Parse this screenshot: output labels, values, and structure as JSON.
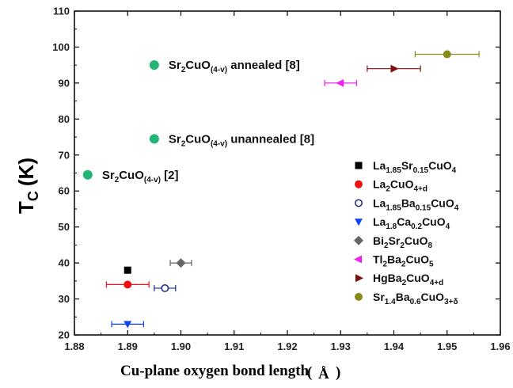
{
  "chart_data": {
    "type": "scatter",
    "xlabel": "Cu-plane oxygen bond length",
    "xlabel_unit": "Å",
    "ylabel_main": "T",
    "ylabel_sub": "C",
    "ylabel_unit": "(K)",
    "xlim": [
      1.88,
      1.96
    ],
    "ylim": [
      20,
      110
    ],
    "xticks": [
      "1.88",
      "1.89",
      "1.90",
      "1.91",
      "1.92",
      "1.93",
      "1.94",
      "1.95",
      "1.96"
    ],
    "yticks": [
      "20",
      "30",
      "40",
      "50",
      "60",
      "70",
      "80",
      "90",
      "100",
      "110"
    ],
    "legend_position": "right",
    "series": [
      {
        "name": "La1.85Sr0.15CuO4",
        "name_parts": [
          [
            "La",
            ""
          ],
          [
            "1.85",
            "sub"
          ],
          [
            "Sr",
            ""
          ],
          [
            "0.15",
            "sub"
          ],
          [
            "CuO",
            ""
          ],
          [
            "4",
            "sub"
          ]
        ],
        "color": "#000000",
        "marker": "square",
        "x": 1.89,
        "y": 38,
        "xerr": 0
      },
      {
        "name": "La2CuO4+d",
        "name_parts": [
          [
            "La",
            ""
          ],
          [
            "2",
            "sub"
          ],
          [
            "CuO",
            ""
          ],
          [
            "4+d",
            "sub"
          ]
        ],
        "color": "#ee1111",
        "marker": "circle",
        "x": 1.89,
        "y": 34,
        "xerr": 0.004
      },
      {
        "name": "La1.85Ba0.15CuO4",
        "name_parts": [
          [
            "La",
            ""
          ],
          [
            "1.85",
            "sub"
          ],
          [
            "Ba",
            ""
          ],
          [
            "0.15",
            "sub"
          ],
          [
            "CuO",
            ""
          ],
          [
            "4",
            "sub"
          ]
        ],
        "color": "#1a2a8a",
        "marker": "open-circle",
        "x": 1.897,
        "y": 33,
        "xerr": 0.002
      },
      {
        "name": "La1.8Ca0.2CuO4",
        "name_parts": [
          [
            "La",
            ""
          ],
          [
            "1.8",
            "sub"
          ],
          [
            "Ca",
            ""
          ],
          [
            "0.2",
            "sub"
          ],
          [
            "CuO",
            ""
          ],
          [
            "4",
            "sub"
          ]
        ],
        "color": "#1144ee",
        "marker": "triangle-down",
        "x": 1.89,
        "y": 23,
        "xerr": 0.003
      },
      {
        "name": "Bi2Sr2CuO8",
        "name_parts": [
          [
            "Bi",
            ""
          ],
          [
            "2",
            "sub"
          ],
          [
            "Sr",
            ""
          ],
          [
            "2",
            "sub"
          ],
          [
            "CuO",
            ""
          ],
          [
            "8",
            "sub"
          ]
        ],
        "color": "#666666",
        "marker": "diamond",
        "x": 1.9,
        "y": 40,
        "xerr": 0.002
      },
      {
        "name": "Tl2Ba2CuO5",
        "name_parts": [
          [
            "Tl",
            ""
          ],
          [
            "2",
            "sub"
          ],
          [
            "Ba",
            ""
          ],
          [
            "2",
            "sub"
          ],
          [
            "CuO",
            ""
          ],
          [
            "5",
            "sub"
          ]
        ],
        "color": "#ee22ee",
        "marker": "triangle-left",
        "x": 1.93,
        "y": 90,
        "xerr": 0.003
      },
      {
        "name": "HgBa2CuO4+d",
        "name_parts": [
          [
            "HgBa",
            ""
          ],
          [
            "2",
            "sub"
          ],
          [
            "CuO",
            ""
          ],
          [
            "4+d",
            "sub"
          ]
        ],
        "color": "#7a1010",
        "marker": "triangle-right",
        "x": 1.94,
        "y": 94,
        "xerr": 0.005
      },
      {
        "name": "Sr1.4Ba0.6CuO3+δ",
        "name_parts": [
          [
            "Sr",
            ""
          ],
          [
            "1.4",
            "sub"
          ],
          [
            "Ba",
            ""
          ],
          [
            "0.6",
            "sub"
          ],
          [
            "CuO",
            ""
          ],
          [
            "3+δ",
            "sub"
          ]
        ],
        "color": "#8a8a1a",
        "marker": "circle",
        "x": 1.95,
        "y": 98,
        "xerr": 0.006
      }
    ],
    "annotated_points": [
      {
        "label": "Sr2CuO(4-v) annealed [8]",
        "label_parts": [
          [
            "Sr",
            ""
          ],
          [
            "2",
            "sub"
          ],
          [
            "CuO",
            ""
          ],
          [
            "(4-v)",
            "sub"
          ],
          [
            " annealed [8]",
            ""
          ]
        ],
        "color": "#22b573",
        "x": 1.895,
        "y": 95
      },
      {
        "label": "Sr2CuO(4-v) unannealed [8]",
        "label_parts": [
          [
            "Sr",
            ""
          ],
          [
            "2",
            "sub"
          ],
          [
            "CuO",
            ""
          ],
          [
            "(4-v)",
            "sub"
          ],
          [
            " unannealed [8]",
            ""
          ]
        ],
        "color": "#22b573",
        "x": 1.895,
        "y": 74.5
      },
      {
        "label": "Sr2CuO(4-v) [2]",
        "label_parts": [
          [
            "Sr",
            ""
          ],
          [
            "2",
            "sub"
          ],
          [
            "CuO",
            ""
          ],
          [
            "(4-v)",
            "sub"
          ],
          [
            " [2]",
            ""
          ]
        ],
        "color": "#22b573",
        "x": 1.8825,
        "y": 64.5
      }
    ]
  }
}
